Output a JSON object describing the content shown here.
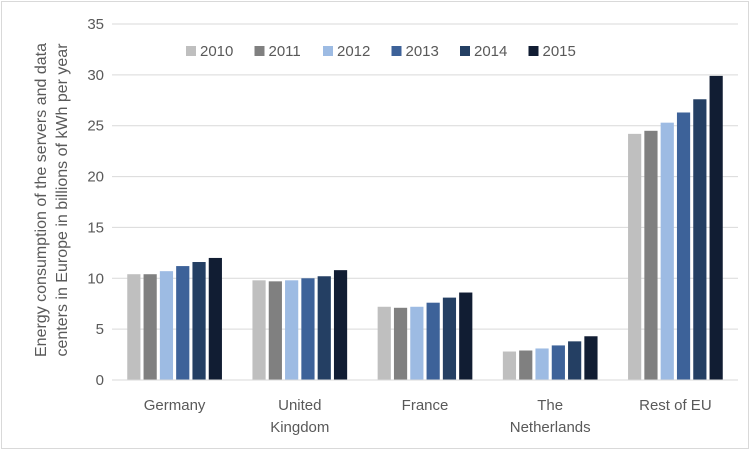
{
  "chart_data": {
    "type": "bar",
    "title": "",
    "ylabel": "Energy consumption of the servers and data centers in Europe in billions of kWh per year",
    "ylabel_lines": [
      "Energy consumption of the servers and data",
      "centers in Europe in billions of kWh per year"
    ],
    "xlabel": "",
    "ylim": [
      0,
      35
    ],
    "yticks": [
      0,
      5,
      10,
      15,
      20,
      25,
      30,
      35
    ],
    "grid": true,
    "legend_position": "top",
    "categories": [
      "Germany",
      "United Kingdom",
      "France",
      "The Netherlands",
      "Rest of EU"
    ],
    "category_lines": [
      [
        "Germany"
      ],
      [
        "United",
        "Kingdom"
      ],
      [
        "France"
      ],
      [
        "The",
        "Netherlands"
      ],
      [
        "Rest of EU"
      ]
    ],
    "series": [
      {
        "name": "2010",
        "color": "#bfbfbf",
        "values": [
          10.4,
          9.8,
          7.2,
          2.8,
          24.2
        ]
      },
      {
        "name": "2011",
        "color": "#808080",
        "values": [
          10.4,
          9.7,
          7.1,
          2.9,
          24.5
        ]
      },
      {
        "name": "2012",
        "color": "#9dbbe3",
        "values": [
          10.7,
          9.8,
          7.2,
          3.1,
          25.3
        ]
      },
      {
        "name": "2013",
        "color": "#3d6299",
        "values": [
          11.2,
          10.0,
          7.6,
          3.4,
          26.3
        ]
      },
      {
        "name": "2014",
        "color": "#243f63",
        "values": [
          11.6,
          10.2,
          8.1,
          3.8,
          27.6
        ]
      },
      {
        "name": "2015",
        "color": "#111d33",
        "values": [
          12.0,
          10.8,
          8.6,
          4.3,
          29.9
        ]
      }
    ]
  }
}
